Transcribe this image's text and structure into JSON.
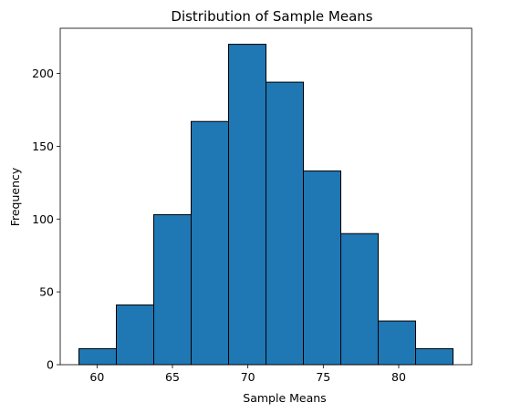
{
  "chart_data": {
    "type": "bar",
    "title": "Distribution of Sample Means",
    "xlabel": "Sample Means",
    "ylabel": "Frequency",
    "bin_edges": [
      58.8,
      61.28,
      63.76,
      66.24,
      68.72,
      71.2,
      73.68,
      76.16,
      78.64,
      81.12,
      83.6
    ],
    "values": [
      11,
      41,
      103,
      167,
      220,
      194,
      133,
      90,
      30,
      11
    ],
    "xlim": [
      57.56,
      84.84
    ],
    "ylim": [
      0,
      231
    ],
    "x_ticks": [
      60,
      65,
      70,
      75,
      80
    ],
    "y_ticks": [
      0,
      50,
      100,
      150,
      200
    ],
    "grid": false,
    "bar_color": "#1f77b4",
    "edge_color": "#000000"
  }
}
